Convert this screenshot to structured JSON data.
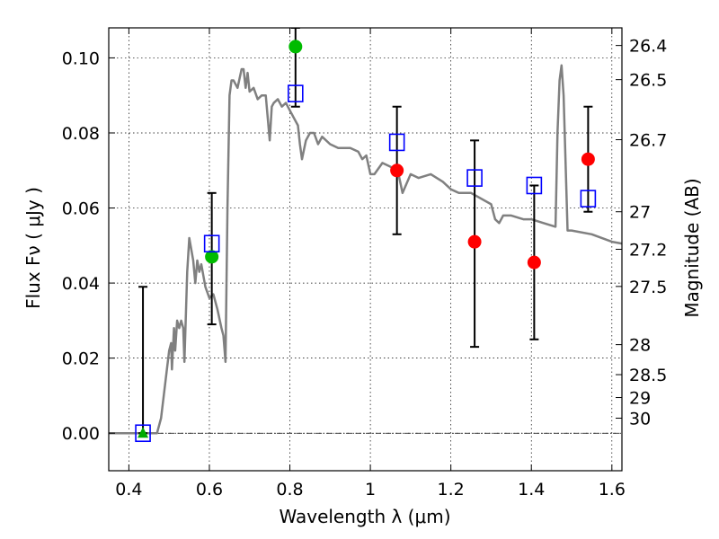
{
  "chart_data": {
    "type": "scatter",
    "xlabel": "Wavelength  λ (μm)",
    "ylabel": "Flux  Fν  ( μJy )",
    "y2label": "Magnitude (AB)",
    "xlim": [
      0.35,
      1.625
    ],
    "ylim": [
      -0.01,
      0.108
    ],
    "grid": true,
    "xticks": [
      {
        "value": 0.4,
        "label": "0.4"
      },
      {
        "value": 0.6,
        "label": "0.6"
      },
      {
        "value": 0.8,
        "label": "0.8"
      },
      {
        "value": 1.0,
        "label": "1"
      },
      {
        "value": 1.2,
        "label": "1.2"
      },
      {
        "value": 1.4,
        "label": "1.4"
      },
      {
        "value": 1.6,
        "label": "1.6"
      }
    ],
    "yticks": [
      {
        "value": 0.0,
        "label": "0.00"
      },
      {
        "value": 0.02,
        "label": "0.02"
      },
      {
        "value": 0.04,
        "label": "0.04"
      },
      {
        "value": 0.06,
        "label": "0.06"
      },
      {
        "value": 0.08,
        "label": "0.08"
      },
      {
        "value": 0.1,
        "label": "0.10"
      }
    ],
    "magnitude_ticks": [
      {
        "flux": 0.1033,
        "label": "26.4"
      },
      {
        "flux": 0.0942,
        "label": "26.5"
      },
      {
        "flux": 0.0782,
        "label": "26.7"
      },
      {
        "flux": 0.059,
        "label": "27"
      },
      {
        "flux": 0.049,
        "label": "27.2"
      },
      {
        "flux": 0.0391,
        "label": "27.5"
      },
      {
        "flux": 0.0236,
        "label": "28"
      },
      {
        "flux": 0.0156,
        "label": "28.5"
      },
      {
        "flux": 0.0095,
        "label": "29"
      },
      {
        "flux": 0.004,
        "label": "30"
      }
    ],
    "series": [
      {
        "kind": "line",
        "color": "#808080",
        "points": [
          [
            0.35,
            0.0
          ],
          [
            0.47,
            0.0
          ],
          [
            0.48,
            0.004
          ],
          [
            0.5,
            0.022
          ],
          [
            0.505,
            0.024
          ],
          [
            0.507,
            0.017
          ],
          [
            0.512,
            0.028
          ],
          [
            0.515,
            0.022
          ],
          [
            0.52,
            0.03
          ],
          [
            0.525,
            0.028
          ],
          [
            0.53,
            0.03
          ],
          [
            0.535,
            0.028
          ],
          [
            0.538,
            0.019
          ],
          [
            0.545,
            0.043
          ],
          [
            0.55,
            0.052
          ],
          [
            0.56,
            0.046
          ],
          [
            0.565,
            0.04
          ],
          [
            0.57,
            0.046
          ],
          [
            0.575,
            0.043
          ],
          [
            0.58,
            0.045
          ],
          [
            0.59,
            0.039
          ],
          [
            0.6,
            0.036
          ],
          [
            0.61,
            0.037
          ],
          [
            0.62,
            0.033
          ],
          [
            0.63,
            0.028
          ],
          [
            0.635,
            0.026
          ],
          [
            0.64,
            0.019
          ],
          [
            0.645,
            0.06
          ],
          [
            0.65,
            0.09
          ],
          [
            0.655,
            0.094
          ],
          [
            0.66,
            0.094
          ],
          [
            0.67,
            0.092
          ],
          [
            0.68,
            0.097
          ],
          [
            0.685,
            0.097
          ],
          [
            0.69,
            0.092
          ],
          [
            0.695,
            0.096
          ],
          [
            0.7,
            0.091
          ],
          [
            0.71,
            0.092
          ],
          [
            0.72,
            0.089
          ],
          [
            0.73,
            0.09
          ],
          [
            0.74,
            0.09
          ],
          [
            0.745,
            0.084
          ],
          [
            0.75,
            0.078
          ],
          [
            0.755,
            0.087
          ],
          [
            0.76,
            0.088
          ],
          [
            0.77,
            0.089
          ],
          [
            0.78,
            0.087
          ],
          [
            0.79,
            0.088
          ],
          [
            0.8,
            0.086
          ],
          [
            0.81,
            0.084
          ],
          [
            0.82,
            0.082
          ],
          [
            0.825,
            0.077
          ],
          [
            0.83,
            0.073
          ],
          [
            0.84,
            0.078
          ],
          [
            0.85,
            0.08
          ],
          [
            0.86,
            0.08
          ],
          [
            0.87,
            0.077
          ],
          [
            0.88,
            0.079
          ],
          [
            0.9,
            0.077
          ],
          [
            0.92,
            0.076
          ],
          [
            0.95,
            0.076
          ],
          [
            0.97,
            0.075
          ],
          [
            0.98,
            0.073
          ],
          [
            0.99,
            0.074
          ],
          [
            1.0,
            0.069
          ],
          [
            1.01,
            0.069
          ],
          [
            1.03,
            0.072
          ],
          [
            1.05,
            0.071
          ],
          [
            1.07,
            0.069
          ],
          [
            1.08,
            0.064
          ],
          [
            1.1,
            0.069
          ],
          [
            1.12,
            0.068
          ],
          [
            1.15,
            0.069
          ],
          [
            1.18,
            0.067
          ],
          [
            1.2,
            0.065
          ],
          [
            1.22,
            0.064
          ],
          [
            1.25,
            0.064
          ],
          [
            1.3,
            0.061
          ],
          [
            1.31,
            0.057
          ],
          [
            1.32,
            0.056
          ],
          [
            1.33,
            0.058
          ],
          [
            1.35,
            0.058
          ],
          [
            1.38,
            0.057
          ],
          [
            1.4,
            0.057
          ],
          [
            1.43,
            0.056
          ],
          [
            1.46,
            0.055
          ],
          [
            1.465,
            0.08
          ],
          [
            1.47,
            0.094
          ],
          [
            1.475,
            0.098
          ],
          [
            1.48,
            0.09
          ],
          [
            1.49,
            0.054
          ],
          [
            1.5,
            0.054
          ],
          [
            1.55,
            0.053
          ],
          [
            1.6,
            0.051
          ],
          [
            1.625,
            0.0505
          ]
        ]
      }
    ],
    "observed": [
      {
        "x": 0.435,
        "y": 0.0,
        "err": [
          0.0,
          0.039
        ],
        "marker": "triangle",
        "color": "#00aa00"
      },
      {
        "x": 0.606,
        "y": 0.047,
        "err": [
          0.029,
          0.064
        ],
        "marker": "circle",
        "color": "#00bb00"
      },
      {
        "x": 0.814,
        "y": 0.103,
        "err": [
          0.087,
          0.108
        ],
        "marker": "circle",
        "color": "#00bb00"
      },
      {
        "x": 1.066,
        "y": 0.07,
        "err": [
          0.053,
          0.087
        ],
        "marker": "circle",
        "color": "#ff0000"
      },
      {
        "x": 1.259,
        "y": 0.051,
        "err": [
          0.023,
          0.078
        ],
        "marker": "circle",
        "color": "#ff0000"
      },
      {
        "x": 1.407,
        "y": 0.0455,
        "err": [
          0.025,
          0.066
        ],
        "marker": "circle",
        "color": "#ff0000"
      },
      {
        "x": 1.541,
        "y": 0.073,
        "err": [
          0.059,
          0.087
        ],
        "marker": "circle",
        "color": "#ff0000"
      }
    ],
    "model_photometry": [
      {
        "x": 0.435,
        "y": 0.0
      },
      {
        "x": 0.606,
        "y": 0.0505
      },
      {
        "x": 0.814,
        "y": 0.0905
      },
      {
        "x": 1.066,
        "y": 0.0775
      },
      {
        "x": 1.259,
        "y": 0.068
      },
      {
        "x": 1.407,
        "y": 0.066
      },
      {
        "x": 1.541,
        "y": 0.0625
      }
    ],
    "model_marker_color": "#0000ff"
  }
}
